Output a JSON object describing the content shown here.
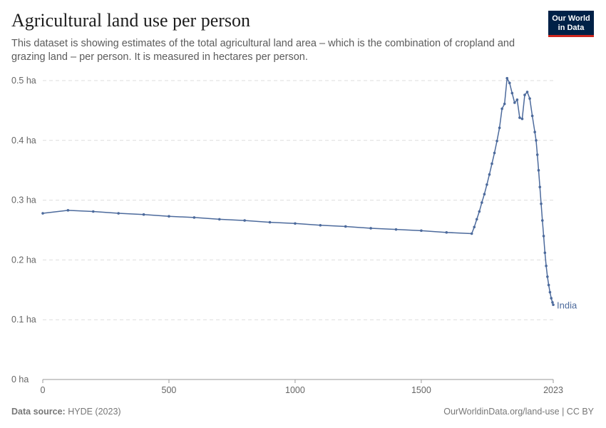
{
  "header": {
    "title": "Agricultural land use per person",
    "subtitle": "This dataset is showing estimates of the total agricultural land area – which is the combination of cropland and grazing land – per person. It is measured in hectares per person.",
    "logo": "Our World in Data"
  },
  "footer": {
    "source_label": "Data source:",
    "source": "HYDE (2023)",
    "url": "OurWorldinData.org/land-use | CC BY"
  },
  "chart_data": {
    "type": "line",
    "title": "Agricultural land use per person",
    "xlim": [
      0,
      2023
    ],
    "ylim": [
      0,
      0.5
    ],
    "x_ticks": [
      0,
      500,
      1000,
      1500,
      2023
    ],
    "y_ticks": [
      0,
      0.1,
      0.2,
      0.3,
      0.4,
      0.5
    ],
    "y_tick_labels": [
      "0 ha",
      "0.1 ha",
      "0.2 ha",
      "0.3 ha",
      "0.4 ha",
      "0.5 ha"
    ],
    "grid": "horizontal dashed",
    "colors": {
      "line": "#4c6a9c"
    },
    "series": [
      {
        "name": "India",
        "x": [
          0,
          100,
          200,
          300,
          400,
          500,
          600,
          700,
          800,
          900,
          1000,
          1100,
          1200,
          1300,
          1400,
          1500,
          1600,
          1700,
          1710,
          1720,
          1730,
          1740,
          1750,
          1760,
          1770,
          1780,
          1790,
          1800,
          1810,
          1820,
          1830,
          1840,
          1850,
          1860,
          1870,
          1880,
          1890,
          1900,
          1910,
          1920,
          1930,
          1940,
          1950,
          1955,
          1960,
          1965,
          1970,
          1975,
          1980,
          1985,
          1990,
          1995,
          2000,
          2005,
          2010,
          2015,
          2020,
          2023
        ],
        "y": [
          0.278,
          0.283,
          0.281,
          0.278,
          0.276,
          0.273,
          0.271,
          0.268,
          0.266,
          0.263,
          0.261,
          0.258,
          0.256,
          0.253,
          0.251,
          0.249,
          0.246,
          0.244,
          0.255,
          0.268,
          0.281,
          0.296,
          0.31,
          0.326,
          0.343,
          0.361,
          0.379,
          0.399,
          0.421,
          0.453,
          0.461,
          0.504,
          0.496,
          0.479,
          0.463,
          0.468,
          0.438,
          0.436,
          0.476,
          0.481,
          0.47,
          0.441,
          0.414,
          0.4,
          0.376,
          0.35,
          0.322,
          0.294,
          0.266,
          0.24,
          0.212,
          0.19,
          0.172,
          0.158,
          0.146,
          0.136,
          0.129,
          0.125
        ]
      }
    ]
  }
}
